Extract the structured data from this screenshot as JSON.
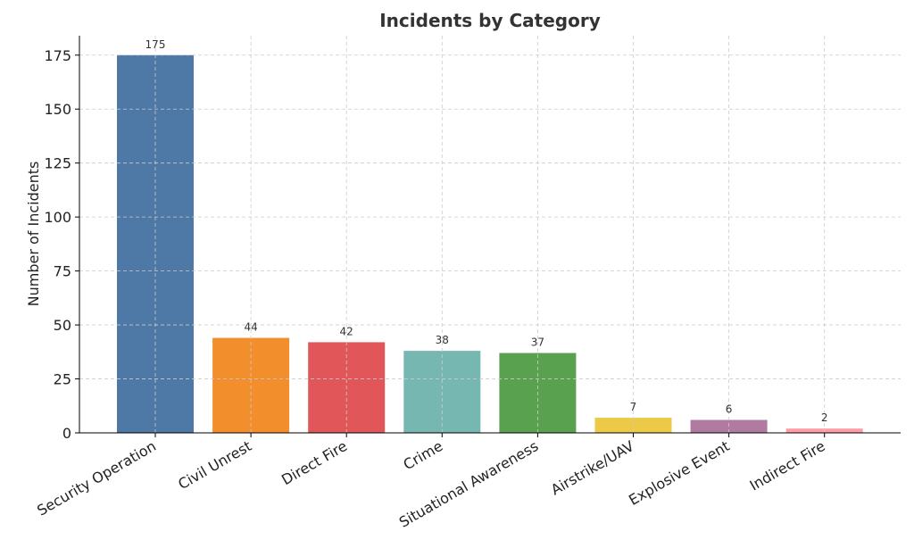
{
  "chart_data": {
    "type": "bar",
    "title": "Incidents by Category",
    "xlabel": "",
    "ylabel": "Number of Incidents",
    "categories": [
      "Security Operation",
      "Civil Unrest",
      "Direct Fire",
      "Crime",
      "Situational Awareness",
      "Airstrike/UAV",
      "Explosive Event",
      "Indirect Fire"
    ],
    "values": [
      175,
      44,
      42,
      38,
      37,
      7,
      6,
      2
    ],
    "colors": [
      "#4e79a7",
      "#f28e2b",
      "#e15759",
      "#76b7b2",
      "#59a14f",
      "#edc948",
      "#b07aa1",
      "#ff9da7"
    ],
    "ylim": [
      0,
      184
    ],
    "yticks": [
      0,
      25,
      50,
      75,
      100,
      125,
      150,
      175
    ],
    "grid": true,
    "data_labels": true
  }
}
